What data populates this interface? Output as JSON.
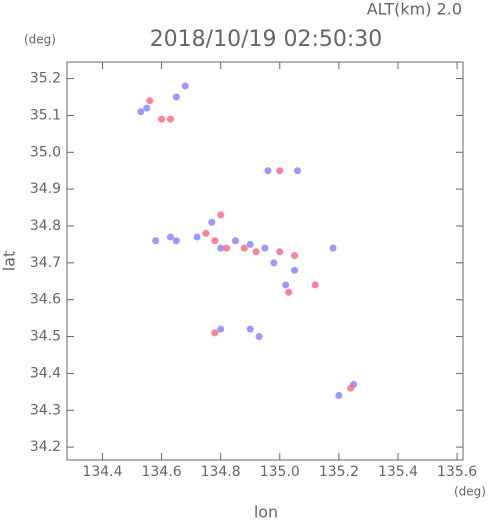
{
  "chart_data": {
    "type": "scatter",
    "title": "2018/10/19 02:50:30",
    "subtitle": "ALT(km) 2.0",
    "x_label": "lon",
    "y_label": "lat",
    "x_unit": "(deg)",
    "y_unit": "(deg)",
    "xlim": [
      134.28,
      135.62
    ],
    "ylim": [
      34.165,
      35.245
    ],
    "xticks": [
      134.4,
      134.6,
      134.8,
      {
        "value": 135.0,
        "label": "135.0"
      },
      135.2,
      135.4,
      135.6
    ],
    "yticks": [
      34.2,
      34.3,
      34.4,
      34.5,
      34.6,
      34.7,
      34.8,
      34.9,
      {
        "value": 35.0,
        "label": "35.0"
      },
      35.1,
      35.2
    ],
    "series": [
      {
        "color": "#8080ff",
        "x": [
          134.53,
          134.55,
          134.65,
          134.68,
          134.96,
          135.06,
          134.58,
          134.63,
          134.65,
          134.72,
          134.77,
          134.8,
          134.85,
          134.9,
          134.95,
          134.98,
          135.05,
          135.02,
          135.2,
          135.25,
          134.93,
          134.9,
          135.18,
          134.8
        ],
        "values": [
          35.11,
          35.12,
          35.15,
          35.18,
          34.95,
          34.95,
          34.76,
          34.77,
          34.76,
          34.77,
          34.81,
          34.74,
          34.76,
          34.75,
          34.74,
          34.7,
          34.68,
          34.64,
          34.34,
          34.37,
          34.5,
          34.52,
          34.74,
          34.52
        ]
      },
      {
        "color": "#ff6080",
        "x": [
          134.56,
          134.6,
          134.63,
          134.8,
          134.78,
          134.82,
          134.88,
          134.92,
          135.0,
          135.05,
          135.03,
          134.78,
          135.12,
          134.75,
          135.0,
          135.24
        ],
        "values": [
          35.14,
          35.09,
          35.09,
          34.83,
          34.76,
          34.74,
          34.74,
          34.73,
          34.73,
          34.72,
          34.62,
          34.51,
          34.64,
          34.78,
          34.95,
          34.36
        ]
      }
    ]
  }
}
